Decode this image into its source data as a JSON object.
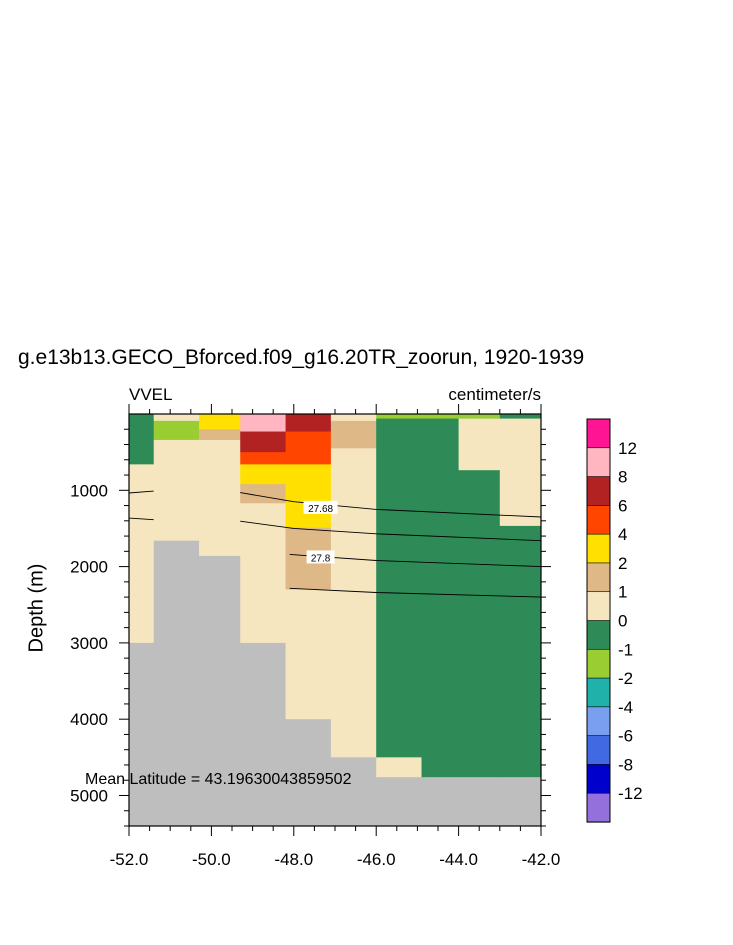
{
  "chart_data": {
    "type": "heatmap",
    "title": "g.e13b13.GECO_Bforced.f09_g16.20TR_zoorun, 1920-1939",
    "variable": "VVEL",
    "units": "centimeter/s",
    "ylabel": "Depth (m)",
    "xlabel": "",
    "xlim": [
      -52,
      -42
    ],
    "ylim": [
      5400,
      0
    ],
    "y_inverted": true,
    "x_ticks": [
      "-52.0",
      "-50.0",
      "-48.0",
      "-46.0",
      "-44.0",
      "-42.0"
    ],
    "y_ticks": [
      "1000",
      "2000",
      "3000",
      "4000",
      "5000"
    ],
    "annotation": "Mean Latitude = 43.19630043859502",
    "contour_labels": [
      {
        "text": "27.68",
        "x": -47.35,
        "y": 1230
      },
      {
        "text": "27.8",
        "x": -47.35,
        "y": 1880
      }
    ],
    "contour_lines": [
      [
        [
          -52.0,
          1035
        ],
        [
          -51.4,
          1010
        ]
      ],
      [
        [
          -49.3,
          1030
        ],
        [
          -48.0,
          1150
        ],
        [
          -46.0,
          1250
        ],
        [
          -42.0,
          1350
        ]
      ],
      [
        [
          -52.0,
          1365
        ],
        [
          -51.4,
          1385
        ]
      ],
      [
        [
          -49.3,
          1405
        ],
        [
          -48.0,
          1500
        ],
        [
          -46.0,
          1570
        ],
        [
          -42.0,
          1660
        ]
      ],
      [
        [
          -48.1,
          1840
        ],
        [
          -46.0,
          1920
        ],
        [
          -42.0,
          2000
        ]
      ],
      [
        [
          -48.1,
          2285
        ],
        [
          -46.0,
          2340
        ],
        [
          -42.0,
          2400
        ]
      ]
    ],
    "colorbar": {
      "labels": [
        "12",
        "8",
        "6",
        "4",
        "2",
        "1",
        "0",
        "-1",
        "-2",
        "-4",
        "-6",
        "-8",
        "-12"
      ],
      "colors": [
        "#ff1493",
        "#ffb6c1",
        "#b22222",
        "#ff4500",
        "#ffe000",
        "#deb887",
        "#f5e6c0",
        "#2e8b57",
        "#9acd32",
        "#20b2aa",
        "#7b9ff0",
        "#4169e1",
        "#0000cd",
        "#9370db"
      ]
    },
    "land_color": "#bebebe",
    "columns": [
      {
        "x0": -52.0,
        "x1": -51.4,
        "cells": [
          [
            0,
            660,
            "#2e8b57"
          ],
          [
            660,
            3000,
            "#f5e6c0"
          ],
          [
            3000,
            5400,
            "#bebebe"
          ]
        ]
      },
      {
        "x0": -51.4,
        "x1": -50.3,
        "cells": [
          [
            0,
            90,
            "#f5e6c0"
          ],
          [
            90,
            340,
            "#9acd32"
          ],
          [
            340,
            1660,
            "#f5e6c0"
          ],
          [
            1660,
            5400,
            "#bebebe"
          ]
        ]
      },
      {
        "x0": -50.3,
        "x1": -49.3,
        "cells": [
          [
            0,
            200,
            "#ffe000"
          ],
          [
            200,
            340,
            "#deb887"
          ],
          [
            340,
            1860,
            "#f5e6c0"
          ],
          [
            1860,
            5400,
            "#bebebe"
          ]
        ]
      },
      {
        "x0": -49.3,
        "x1": -48.2,
        "cells": [
          [
            0,
            230,
            "#ffb6c1"
          ],
          [
            230,
            500,
            "#b22222"
          ],
          [
            500,
            660,
            "#ff4500"
          ],
          [
            660,
            920,
            "#ffe000"
          ],
          [
            920,
            1170,
            "#deb887"
          ],
          [
            1170,
            3000,
            "#f5e6c0"
          ],
          [
            3000,
            5400,
            "#bebebe"
          ]
        ]
      },
      {
        "x0": -48.2,
        "x1": -47.1,
        "cells": [
          [
            0,
            230,
            "#b22222"
          ],
          [
            230,
            660,
            "#ff4500"
          ],
          [
            660,
            1490,
            "#ffe000"
          ],
          [
            1490,
            2300,
            "#deb887"
          ],
          [
            2300,
            4000,
            "#f5e6c0"
          ],
          [
            4000,
            5400,
            "#bebebe"
          ]
        ]
      },
      {
        "x0": -47.1,
        "x1": -46.0,
        "cells": [
          [
            0,
            90,
            "#f5e6c0"
          ],
          [
            90,
            450,
            "#deb887"
          ],
          [
            450,
            4500,
            "#f5e6c0"
          ],
          [
            4500,
            5400,
            "#bebebe"
          ]
        ]
      },
      {
        "x0": -46.0,
        "x1": -44.9,
        "cells": [
          [
            0,
            60,
            "#9acd32"
          ],
          [
            60,
            4500,
            "#2e8b57"
          ],
          [
            4500,
            4760,
            "#f5e6c0"
          ],
          [
            4760,
            5400,
            "#bebebe"
          ]
        ]
      },
      {
        "x0": -44.9,
        "x1": -43.0,
        "cells": [
          [
            0,
            60,
            "#9acd32"
          ],
          [
            60,
            4760,
            "#2e8b57"
          ],
          [
            4760,
            5400,
            "#bebebe"
          ]
        ]
      },
      {
        "x0": -43.0,
        "x1": -42.0,
        "cells": [
          [
            0,
            60,
            "#2e8b57"
          ],
          [
            60,
            4760,
            "#2e8b57"
          ],
          [
            4760,
            5400,
            "#bebebe"
          ]
        ]
      }
    ],
    "extra_cells": [
      {
        "x0": -44.0,
        "x1": -42.0,
        "y0": 60,
        "y1": 730,
        "color": "#f5e6c0"
      },
      {
        "x0": -43.0,
        "x1": -42.0,
        "y0": 730,
        "y1": 1460,
        "color": "#f5e6c0"
      }
    ]
  }
}
